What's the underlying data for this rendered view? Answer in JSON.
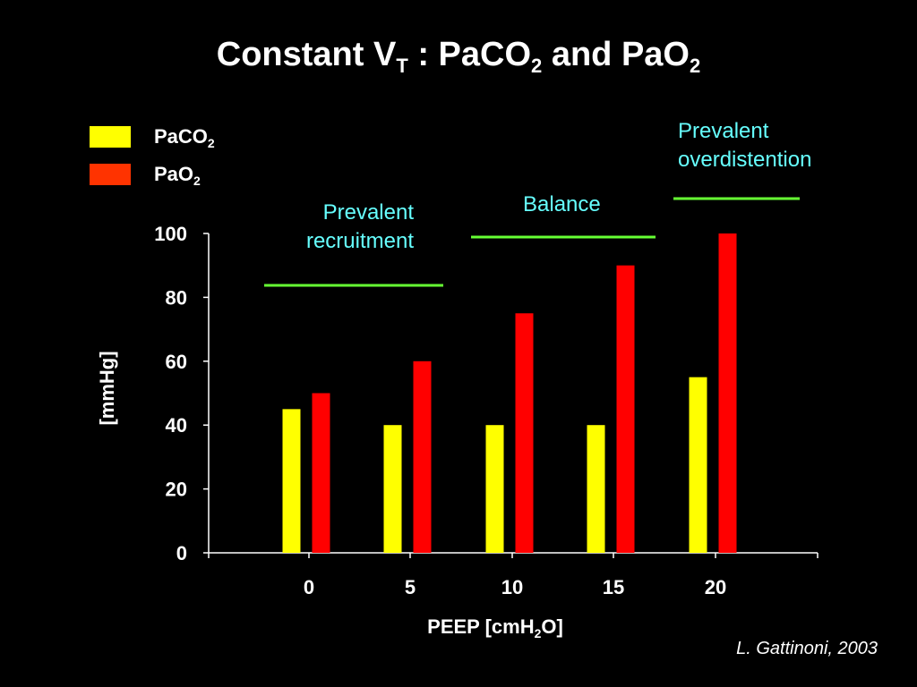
{
  "title": {
    "pre": "Constant V",
    "sub1": "T",
    "mid": " : PaCO",
    "sub2": "2",
    "mid2": " and PaO",
    "sub3": "2"
  },
  "legend": [
    {
      "pre": "PaCO",
      "sub": "2",
      "color": "#ffff00"
    },
    {
      "pre": "PaO",
      "sub": "2",
      "color": "#ff3300"
    }
  ],
  "annotations": {
    "recruitment": {
      "line1": "Prevalent",
      "line2": "recruitment"
    },
    "balance": "Balance",
    "overdistention": {
      "line1": "Prevalent",
      "line2": "overdistention"
    },
    "text_color": "#66ffff",
    "line_color": "#66ff33"
  },
  "yaxis_label": "[mmHg]",
  "xaxis_label": {
    "pre": "PEEP [cmH",
    "sub": "2",
    "post": "O]"
  },
  "credit": "L. Gattinoni, 2003",
  "chart_data": {
    "type": "bar",
    "categories": [
      "0",
      "5",
      "10",
      "15",
      "20"
    ],
    "series": [
      {
        "name": "PaCO2",
        "values": [
          45,
          40,
          40,
          40,
          55
        ],
        "color": "#ffff00"
      },
      {
        "name": "PaO2",
        "values": [
          50,
          60,
          75,
          90,
          100
        ],
        "color": "#ff0000"
      }
    ],
    "yticks": [
      "0",
      "20",
      "40",
      "60",
      "80",
      "100"
    ],
    "ylim": [
      0,
      100
    ],
    "ylabel": "[mmHg]",
    "xlabel": "PEEP [cmH2O]",
    "grid": false,
    "legend_position": "top-left"
  }
}
